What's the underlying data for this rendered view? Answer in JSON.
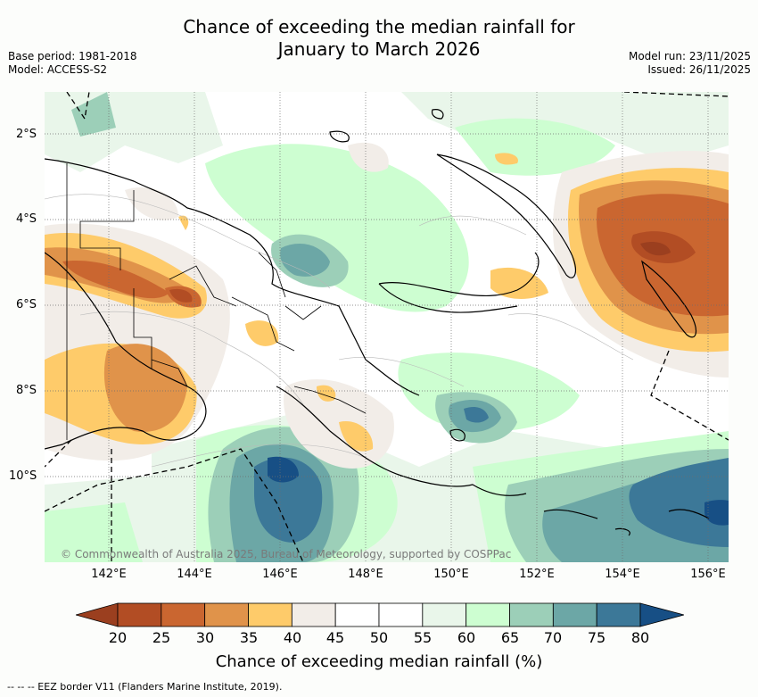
{
  "title": {
    "line1": "Chance of exceeding the median rainfall for",
    "line2": "January to March 2026"
  },
  "meta": {
    "base_period": "Base period: 1981-2018",
    "model": "Model: ACCESS-S2",
    "model_run": "Model run: 23/11/2025",
    "issued": "Issued: 26/11/2025"
  },
  "axes": {
    "lat_labels": [
      "2°S",
      "4°S",
      "6°S",
      "8°S",
      "10°S"
    ],
    "lon_labels": [
      "142°E",
      "144°E",
      "146°E",
      "148°E",
      "150°E",
      "152°E",
      "154°E",
      "156°E"
    ]
  },
  "copyright": "© Commonwealth of Australia 2025, Bureau of Meteorology, supported by COSPPac",
  "colorbar": {
    "label": "Chance of exceeding median rainfall (%)",
    "ticks": [
      "20",
      "25",
      "30",
      "35",
      "40",
      "45",
      "50",
      "55",
      "60",
      "65",
      "70",
      "75",
      "80"
    ],
    "colors": [
      "#9b3f1f",
      "#b24d24",
      "#ca6630",
      "#e0934a",
      "#fecb6a",
      "#f2ede8",
      "#ffffff",
      "#ffffff",
      "#e9f6ea",
      "#cdfed1",
      "#9ccfb8",
      "#6ca7a6",
      "#3c7898",
      "#174f85"
    ]
  },
  "eez_note": "-- -- -- EEZ border V11 (Flanders Marine Institute, 2019)."
}
